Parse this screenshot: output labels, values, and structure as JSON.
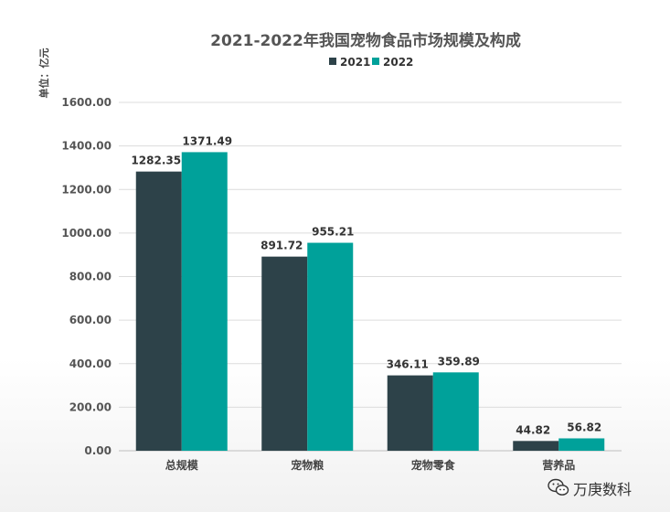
{
  "chart_data": {
    "type": "bar",
    "title": "2021-2022年我国宠物食品市场规模及构成",
    "ylabel": "单位：亿元",
    "xlabel": "",
    "categories": [
      "总规模",
      "宠物粮",
      "宠物零食",
      "营养品"
    ],
    "series": [
      {
        "name": "2021",
        "color": "#2d4249",
        "values": [
          1282.35,
          891.72,
          346.11,
          44.82
        ]
      },
      {
        "name": "2022",
        "color": "#00a19a",
        "values": [
          1371.49,
          955.21,
          359.89,
          56.82
        ]
      }
    ],
    "ylim": [
      0,
      1600
    ],
    "yticks": [
      0,
      200,
      400,
      600,
      800,
      1000,
      1200,
      1400,
      1600
    ],
    "ytick_decimals": 2,
    "grid": true,
    "legend_placement": "top-center"
  },
  "watermark": {
    "text": "万庚数科",
    "icon": "wechat-icon"
  }
}
